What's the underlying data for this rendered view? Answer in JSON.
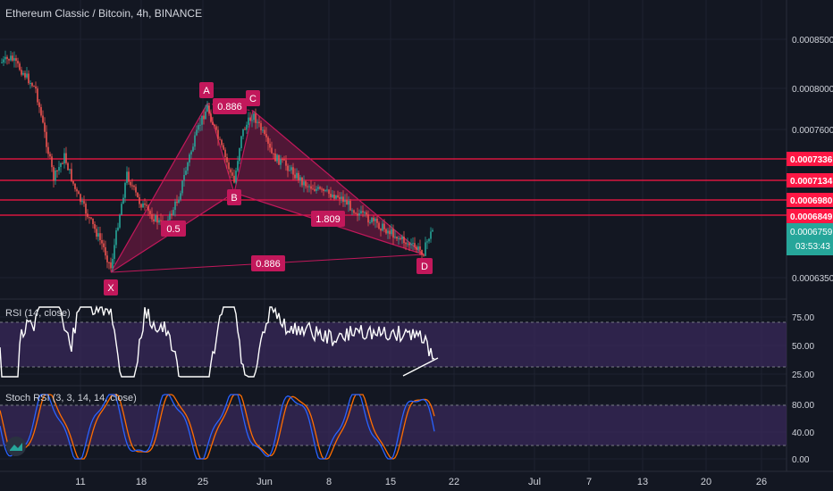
{
  "header": {
    "title": "Ethereum Classic / Bitcoin, 4h, BINANCE"
  },
  "colors": {
    "background": "#131722",
    "grid": "#1e2230",
    "candle_up": "#26a69a",
    "candle_down": "#ef5350",
    "pattern": "#c2185b",
    "level_line": "#ff1744",
    "rsi_line": "#ffffff",
    "stoch_k": "#2962ff",
    "stoch_d": "#ff6d00",
    "band": "#3a2a5c"
  },
  "price_axis": {
    "ticks": [
      "0.0008500",
      "0.0008000",
      "0.0007600",
      "0.0006350"
    ],
    "level_tags": [
      "0.0007336",
      "0.0007134",
      "0.0006980",
      "0.0006849"
    ],
    "current_price": "0.0006759",
    "countdown": "03:53:43"
  },
  "pattern": {
    "labels": [
      "X",
      "A",
      "B",
      "C",
      "D"
    ],
    "ratios": [
      "0.5",
      "0.886",
      "1.809",
      "0.886"
    ]
  },
  "rsi": {
    "label": "RSI (14, close)",
    "ticks": [
      "75.00",
      "50.00",
      "25.00"
    ]
  },
  "stoch": {
    "label": "Stoch RSI (3, 3, 14, 14, close)",
    "ticks": [
      "80.00",
      "40.00",
      "0.00"
    ]
  },
  "time_axis": {
    "labels": [
      "11",
      "18",
      "25",
      "Jun",
      "8",
      "15",
      "22",
      "Jul",
      "7",
      "13",
      "20",
      "26"
    ]
  }
}
